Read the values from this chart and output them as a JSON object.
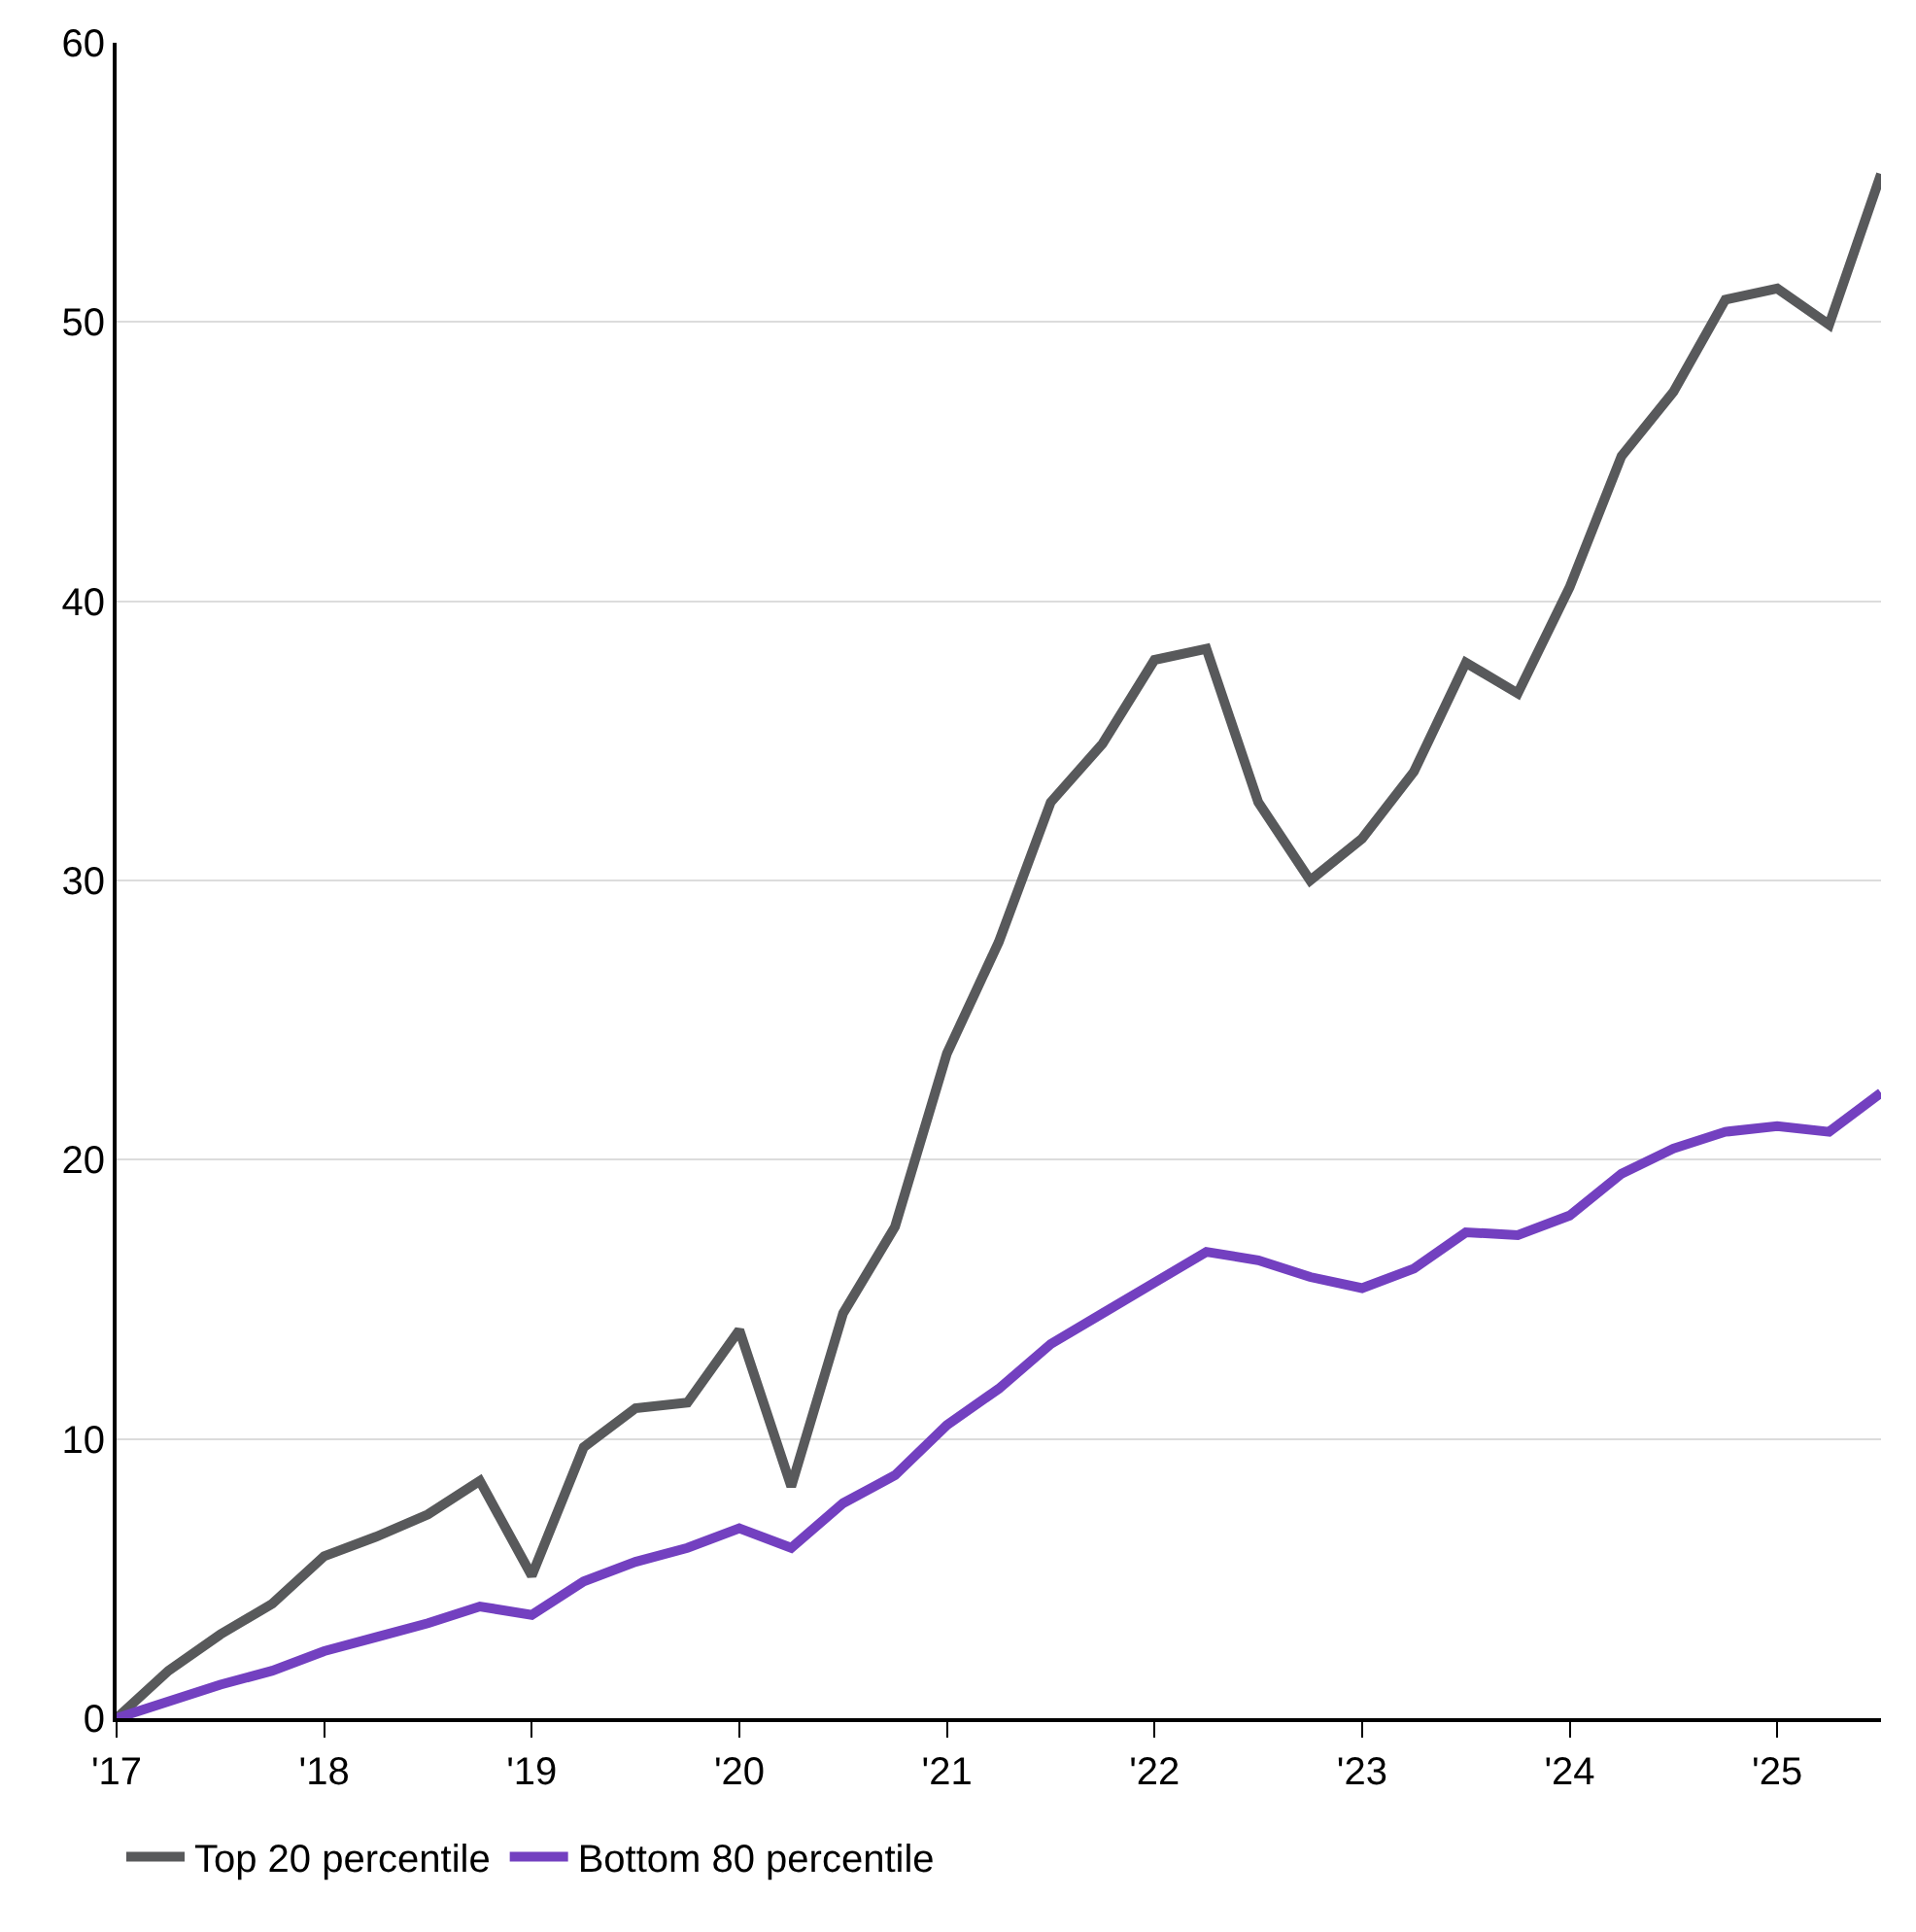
{
  "chart_data": {
    "type": "line",
    "x": [
      2017,
      2017.25,
      2017.5,
      2017.75,
      2018,
      2018.25,
      2018.5,
      2018.75,
      2019,
      2019.25,
      2019.5,
      2019.75,
      2020,
      2020.25,
      2020.5,
      2020.75,
      2021,
      2021.25,
      2021.5,
      2021.75,
      2022,
      2022.25,
      2022.5,
      2022.75,
      2023,
      2023.25,
      2023.5,
      2023.75,
      2024,
      2024.25,
      2024.5,
      2024.75,
      2025,
      2025.25,
      2025.5
    ],
    "series": [
      {
        "name": "Top 20 percentile",
        "color": "#58595b",
        "values": [
          0,
          1.7,
          3.0,
          4.1,
          5.8,
          6.5,
          7.3,
          8.5,
          5.1,
          9.7,
          11.1,
          11.3,
          13.9,
          8.3,
          14.5,
          17.6,
          23.8,
          27.8,
          32.8,
          34.9,
          37.9,
          38.3,
          32.8,
          30.0,
          31.5,
          33.9,
          37.8,
          36.7,
          40.5,
          45.2,
          47.5,
          50.8,
          51.2,
          49.9,
          55.3
        ]
      },
      {
        "name": "Bottom 80 percentile",
        "color": "#7340c0",
        "values": [
          0,
          0.6,
          1.2,
          1.7,
          2.4,
          2.9,
          3.4,
          4.0,
          3.7,
          4.9,
          5.6,
          6.1,
          6.8,
          6.1,
          7.7,
          8.7,
          10.5,
          11.8,
          13.4,
          14.5,
          15.6,
          16.7,
          16.4,
          15.8,
          15.4,
          16.1,
          17.4,
          17.3,
          18.0,
          19.5,
          20.4,
          21.0,
          21.2,
          21.0,
          22.4
        ]
      }
    ],
    "xlim": [
      2017,
      2025.5
    ],
    "xticks": [
      {
        "value": 2017,
        "label": "'17"
      },
      {
        "value": 2018,
        "label": "'18"
      },
      {
        "value": 2019,
        "label": "'19"
      },
      {
        "value": 2020,
        "label": "'20"
      },
      {
        "value": 2021,
        "label": "'21"
      },
      {
        "value": 2022,
        "label": "'22"
      },
      {
        "value": 2023,
        "label": "'23"
      },
      {
        "value": 2024,
        "label": "'24"
      },
      {
        "value": 2025,
        "label": "'25"
      }
    ],
    "ylim": [
      0,
      60
    ],
    "yticks": [
      0,
      10,
      20,
      30,
      40,
      50,
      60
    ],
    "grid": "y",
    "legend": "bottom left",
    "marker": "none",
    "line_style": "solid"
  }
}
